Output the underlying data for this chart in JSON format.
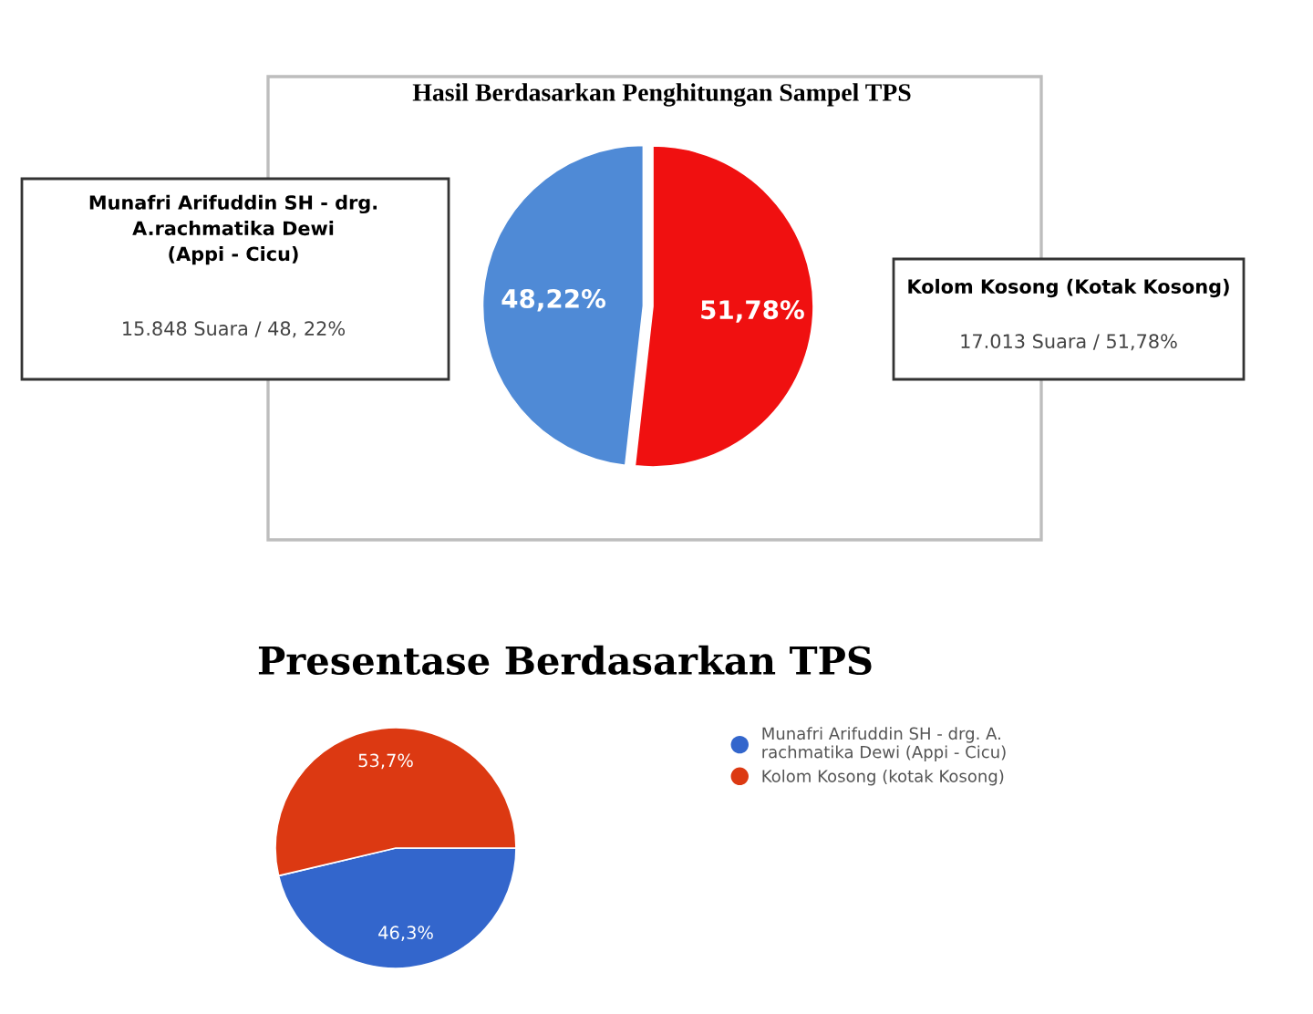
{
  "chart_data": [
    {
      "type": "pie",
      "title": "Hasil Berdasarkan Penghitungan Sampel TPS",
      "categories": [
        "Munafri Arifuddin SH - drg.\nA.rachmatika Dewi\n(Appi - Cicu)",
        "Kolom Kosong (Kotak Kosong)"
      ],
      "values": [
        48.22,
        51.78
      ],
      "colors": [
        "#4f8ad6",
        "#f01010"
      ],
      "value_labels": [
        "48,22%",
        "51,78%"
      ],
      "annotations": [
        "15.848 Suara / 48, 22%",
        "17.013 Suara / 51,78%"
      ],
      "legend": false
    },
    {
      "type": "pie",
      "title": "Presentase Berdasarkan TPS",
      "categories": [
        "Munafri Arifuddin SH - drg. A.\nrachmatika Dewi (Appi - Cicu)",
        "Kolom Kosong (kotak Kosong)"
      ],
      "values": [
        46.3,
        53.7
      ],
      "colors": [
        "#3366cc",
        "#dc3912"
      ],
      "value_labels": [
        "46,3%",
        "53,7%"
      ],
      "legend": "right"
    }
  ]
}
